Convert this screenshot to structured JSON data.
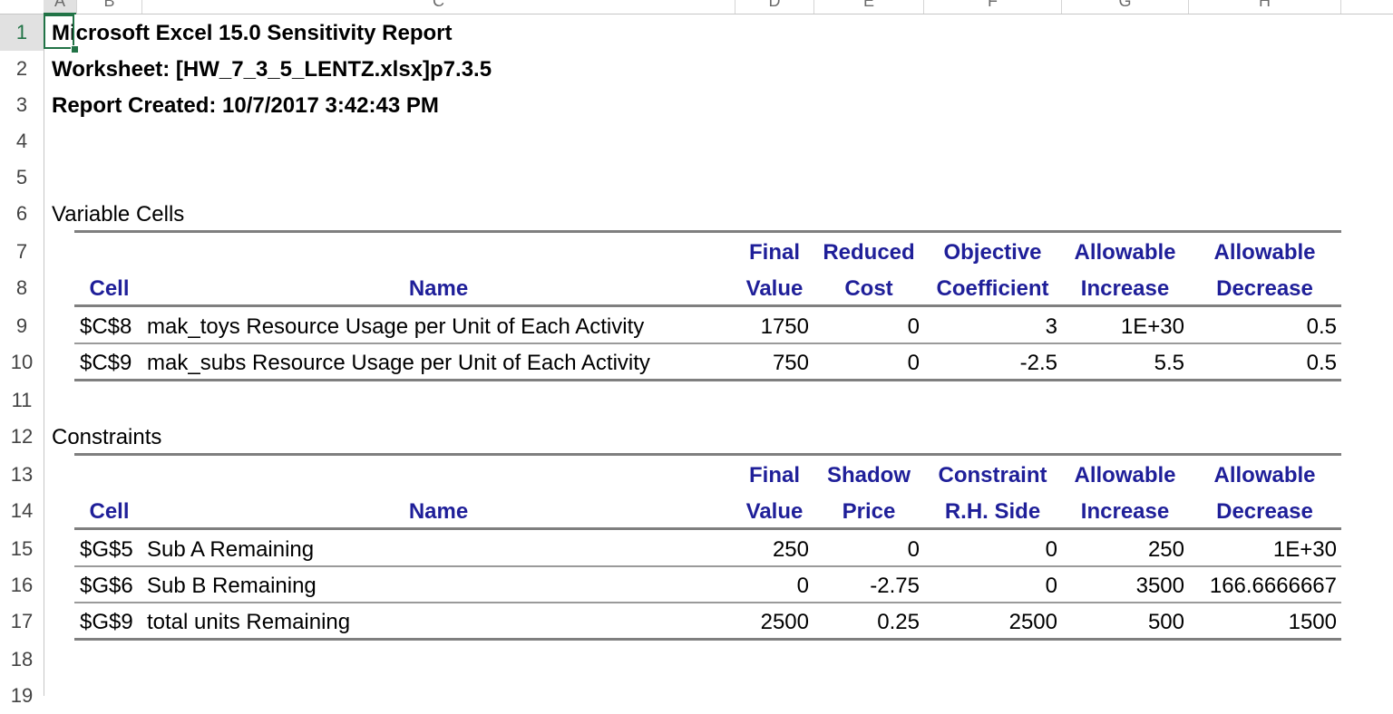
{
  "sheet": {
    "row_numbers": [
      "1",
      "2",
      "3",
      "4",
      "5",
      "6",
      "7",
      "8",
      "9",
      "10",
      "11",
      "12",
      "13",
      "14",
      "15",
      "16",
      "17",
      "18",
      "19"
    ],
    "column_letters": [
      "A",
      "B",
      "C",
      "D",
      "E",
      "F",
      "G",
      "H"
    ],
    "selected_cell_row": "1"
  },
  "report": {
    "title": "Microsoft Excel 15.0 Sensitivity Report",
    "worksheet": "Worksheet: [HW_7_3_5_LENTZ.xlsx]p7.3.5",
    "created": "Report Created: 10/7/2017 3:42:43 PM"
  },
  "variable_cells": {
    "section_label": "Variable Cells",
    "headers_top": [
      "Final",
      "Reduced",
      "Objective",
      "Allowable",
      "Allowable"
    ],
    "headers_bottom": [
      "Cell",
      "Name",
      "Value",
      "Cost",
      "Coefficient",
      "Increase",
      "Decrease"
    ],
    "rows": [
      [
        "$C$8",
        "mak_toys Resource Usage per Unit of Each Activity",
        "1750",
        "0",
        "3",
        "1E+30",
        "0.5"
      ],
      [
        "$C$9",
        "mak_subs Resource Usage per Unit of Each Activity",
        "750",
        "0",
        "-2.5",
        "5.5",
        "0.5"
      ]
    ]
  },
  "constraints": {
    "section_label": "Constraints",
    "headers_top": [
      "Final",
      "Shadow",
      "Constraint",
      "Allowable",
      "Allowable"
    ],
    "headers_bottom": [
      "Cell",
      "Name",
      "Value",
      "Price",
      "R.H. Side",
      "Increase",
      "Decrease"
    ],
    "rows": [
      [
        "$G$5",
        "Sub A Remaining",
        "250",
        "0",
        "0",
        "250",
        "1E+30"
      ],
      [
        "$G$6",
        "Sub B Remaining",
        "0",
        "-2.75",
        "0",
        "3500",
        "166.6666667"
      ],
      [
        "$G$9",
        "total units Remaining",
        "2500",
        "0.25",
        "2500",
        "500",
        "1500"
      ]
    ]
  },
  "colors": {
    "header_text": "#1f1f99",
    "selection": "#217346"
  }
}
